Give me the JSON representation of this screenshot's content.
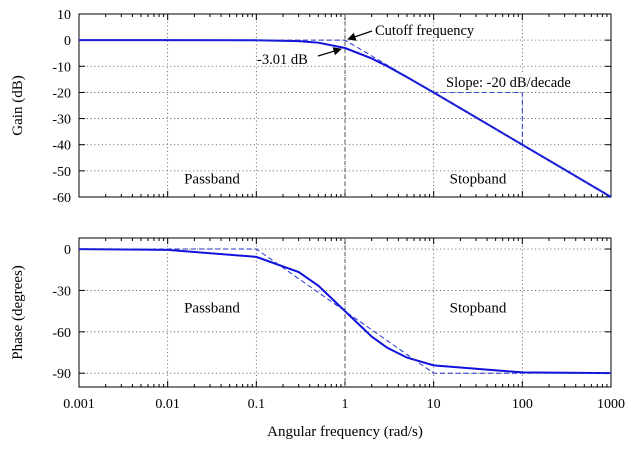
{
  "chart_data": [
    {
      "type": "line",
      "name": "gain-panel",
      "ylabel": "Gain (dB)",
      "xscale": "log",
      "xlim": [
        0.001,
        1000
      ],
      "ylim": [
        -60,
        10
      ],
      "yticks": [
        "10",
        "0",
        "-10",
        "-20",
        "-30",
        "-40",
        "-50",
        "-60"
      ],
      "grid": true,
      "series": [
        {
          "x": [
            0.001,
            0.01,
            0.1,
            0.3,
            0.5,
            1,
            2,
            3,
            5,
            10,
            30,
            100,
            300,
            1000
          ],
          "values": [
            0,
            0,
            -0.04,
            -0.37,
            -0.97,
            -3.01,
            -6.99,
            -10,
            -14.15,
            -20.04,
            -29.55,
            -40,
            -49.54,
            -60
          ]
        },
        {
          "style": "dashed-asymptote",
          "x": [
            0.001,
            1,
            1000
          ],
          "values": [
            0,
            0,
            -60
          ]
        }
      ],
      "annotations": [
        {
          "text": "Cutoff frequency",
          "x": 1,
          "y": 0
        },
        {
          "text": "-3.01 dB",
          "x": 1,
          "y": -3.01
        },
        {
          "text": "Slope: -20 dB/decade",
          "slope_triangle_x": [
            10,
            100
          ],
          "slope_triangle_y": [
            -20,
            -40
          ]
        }
      ],
      "regions": [
        "Passband",
        "Stopband"
      ]
    },
    {
      "type": "line",
      "name": "phase-panel",
      "xlabel": "Angular frequency (rad/s)",
      "ylabel": "Phase (degrees)",
      "xscale": "log",
      "xlim": [
        0.001,
        1000
      ],
      "ylim": [
        -100,
        8
      ],
      "xticks": [
        "0.001",
        "0.01",
        "0.1",
        "1",
        "10",
        "100",
        "1000"
      ],
      "yticks": [
        "0",
        "-30",
        "-60",
        "-90"
      ],
      "grid": true,
      "series": [
        {
          "x": [
            0.001,
            0.01,
            0.1,
            0.3,
            0.5,
            1,
            2,
            3,
            5,
            10,
            100,
            1000
          ],
          "values": [
            -0.06,
            -0.57,
            -5.71,
            -16.7,
            -26.57,
            -45,
            -63.43,
            -71.57,
            -78.69,
            -84.29,
            -89.43,
            -89.94
          ]
        },
        {
          "style": "dashed-asymptote",
          "x": [
            0.001,
            0.1,
            10,
            1000
          ],
          "values": [
            0,
            0,
            -90,
            -90
          ]
        }
      ],
      "regions": [
        "Passband",
        "Stopband"
      ]
    }
  ],
  "colors": {
    "curve": "#1111dd",
    "asymptote": "#2233cc"
  }
}
